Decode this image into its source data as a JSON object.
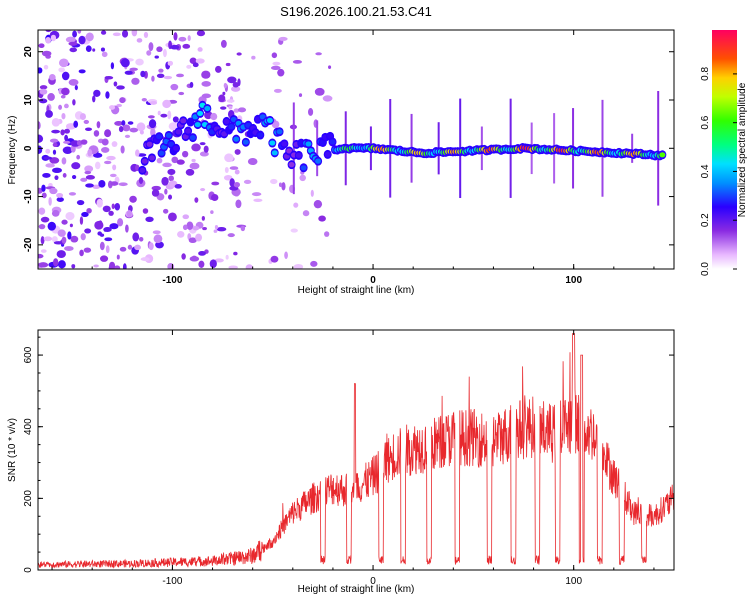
{
  "figure_title": "S196.2026.100.21.53.C41",
  "chart_data": [
    {
      "type": "heatmap",
      "title": "S196.2026.100.21.53.C41",
      "xlabel": "Height of straight line (km)",
      "ylabel": "Frequency (Hz)",
      "xlim": [
        -167,
        150
      ],
      "ylim": [
        -25,
        24.5
      ],
      "xticks": [
        -100,
        0,
        100
      ],
      "xtick_labels": [
        "-100",
        "0",
        "100"
      ],
      "yticks": [
        -20,
        -10,
        0,
        10,
        20
      ],
      "ytick_labels": [
        "-20",
        "-10",
        "0",
        "10",
        "20"
      ],
      "colorbar": {
        "label": "Normalized spectral amplitude",
        "range": [
          0,
          0.98
        ],
        "ticks": [
          0.0,
          0.2,
          0.4,
          0.6,
          0.8
        ],
        "tick_labels": [
          "0.0",
          "0.2",
          "0.4",
          "0.6",
          "0.8"
        ]
      },
      "ridge": {
        "description": "dominant spectral ridge",
        "points": [
          {
            "x": -115,
            "y": -2,
            "a": 0.35
          },
          {
            "x": -100,
            "y": 1,
            "a": 0.32
          },
          {
            "x": -85,
            "y": 7,
            "a": 0.45
          },
          {
            "x": -70,
            "y": 3,
            "a": 0.33
          },
          {
            "x": -55,
            "y": 5,
            "a": 0.5
          },
          {
            "x": -42,
            "y": -2,
            "a": 0.3
          },
          {
            "x": -30,
            "y": -1,
            "a": 0.4
          },
          {
            "x": -15,
            "y": 0,
            "a": 0.55
          },
          {
            "x": 0,
            "y": 0,
            "a": 0.85
          },
          {
            "x": 25,
            "y": -1,
            "a": 0.8
          },
          {
            "x": 50,
            "y": -0.5,
            "a": 0.85
          },
          {
            "x": 75,
            "y": 0,
            "a": 0.95
          },
          {
            "x": 100,
            "y": -0.5,
            "a": 0.9
          },
          {
            "x": 125,
            "y": -1,
            "a": 0.85
          },
          {
            "x": 145,
            "y": -1.5,
            "a": 0.8
          }
        ]
      }
    },
    {
      "type": "line",
      "xlabel": "Height of straight line (km)",
      "ylabel": "SNR (10 * v/v)",
      "xlim": [
        -167,
        150
      ],
      "ylim": [
        0,
        670
      ],
      "xticks": [
        -100,
        0,
        100
      ],
      "xtick_labels": [
        "-100",
        "0",
        "100"
      ],
      "yticks": [
        0,
        200,
        400,
        600
      ],
      "ytick_labels": [
        "0",
        "200",
        "400",
        "600"
      ],
      "series": [
        {
          "name": "SNR",
          "color": "#e8282d",
          "envelope": [
            {
              "x": -167,
              "y": 15
            },
            {
              "x": -120,
              "y": 18
            },
            {
              "x": -80,
              "y": 25
            },
            {
              "x": -60,
              "y": 40
            },
            {
              "x": -50,
              "y": 80
            },
            {
              "x": -40,
              "y": 160
            },
            {
              "x": -30,
              "y": 200
            },
            {
              "x": -20,
              "y": 230
            },
            {
              "x": -10,
              "y": 220
            },
            {
              "x": 0,
              "y": 260
            },
            {
              "x": 10,
              "y": 320
            },
            {
              "x": 20,
              "y": 340
            },
            {
              "x": 30,
              "y": 350
            },
            {
              "x": 40,
              "y": 370
            },
            {
              "x": 50,
              "y": 370
            },
            {
              "x": 60,
              "y": 360
            },
            {
              "x": 70,
              "y": 390
            },
            {
              "x": 80,
              "y": 400
            },
            {
              "x": 90,
              "y": 380
            },
            {
              "x": 100,
              "y": 420
            },
            {
              "x": 110,
              "y": 380
            },
            {
              "x": 120,
              "y": 260
            },
            {
              "x": 130,
              "y": 160
            },
            {
              "x": 140,
              "y": 150
            },
            {
              "x": 150,
              "y": 200
            }
          ],
          "dropouts_x": [
            -25,
            -12,
            4,
            15,
            28,
            42,
            58,
            70,
            82,
            92,
            104,
            113,
            124,
            135
          ]
        }
      ]
    }
  ]
}
